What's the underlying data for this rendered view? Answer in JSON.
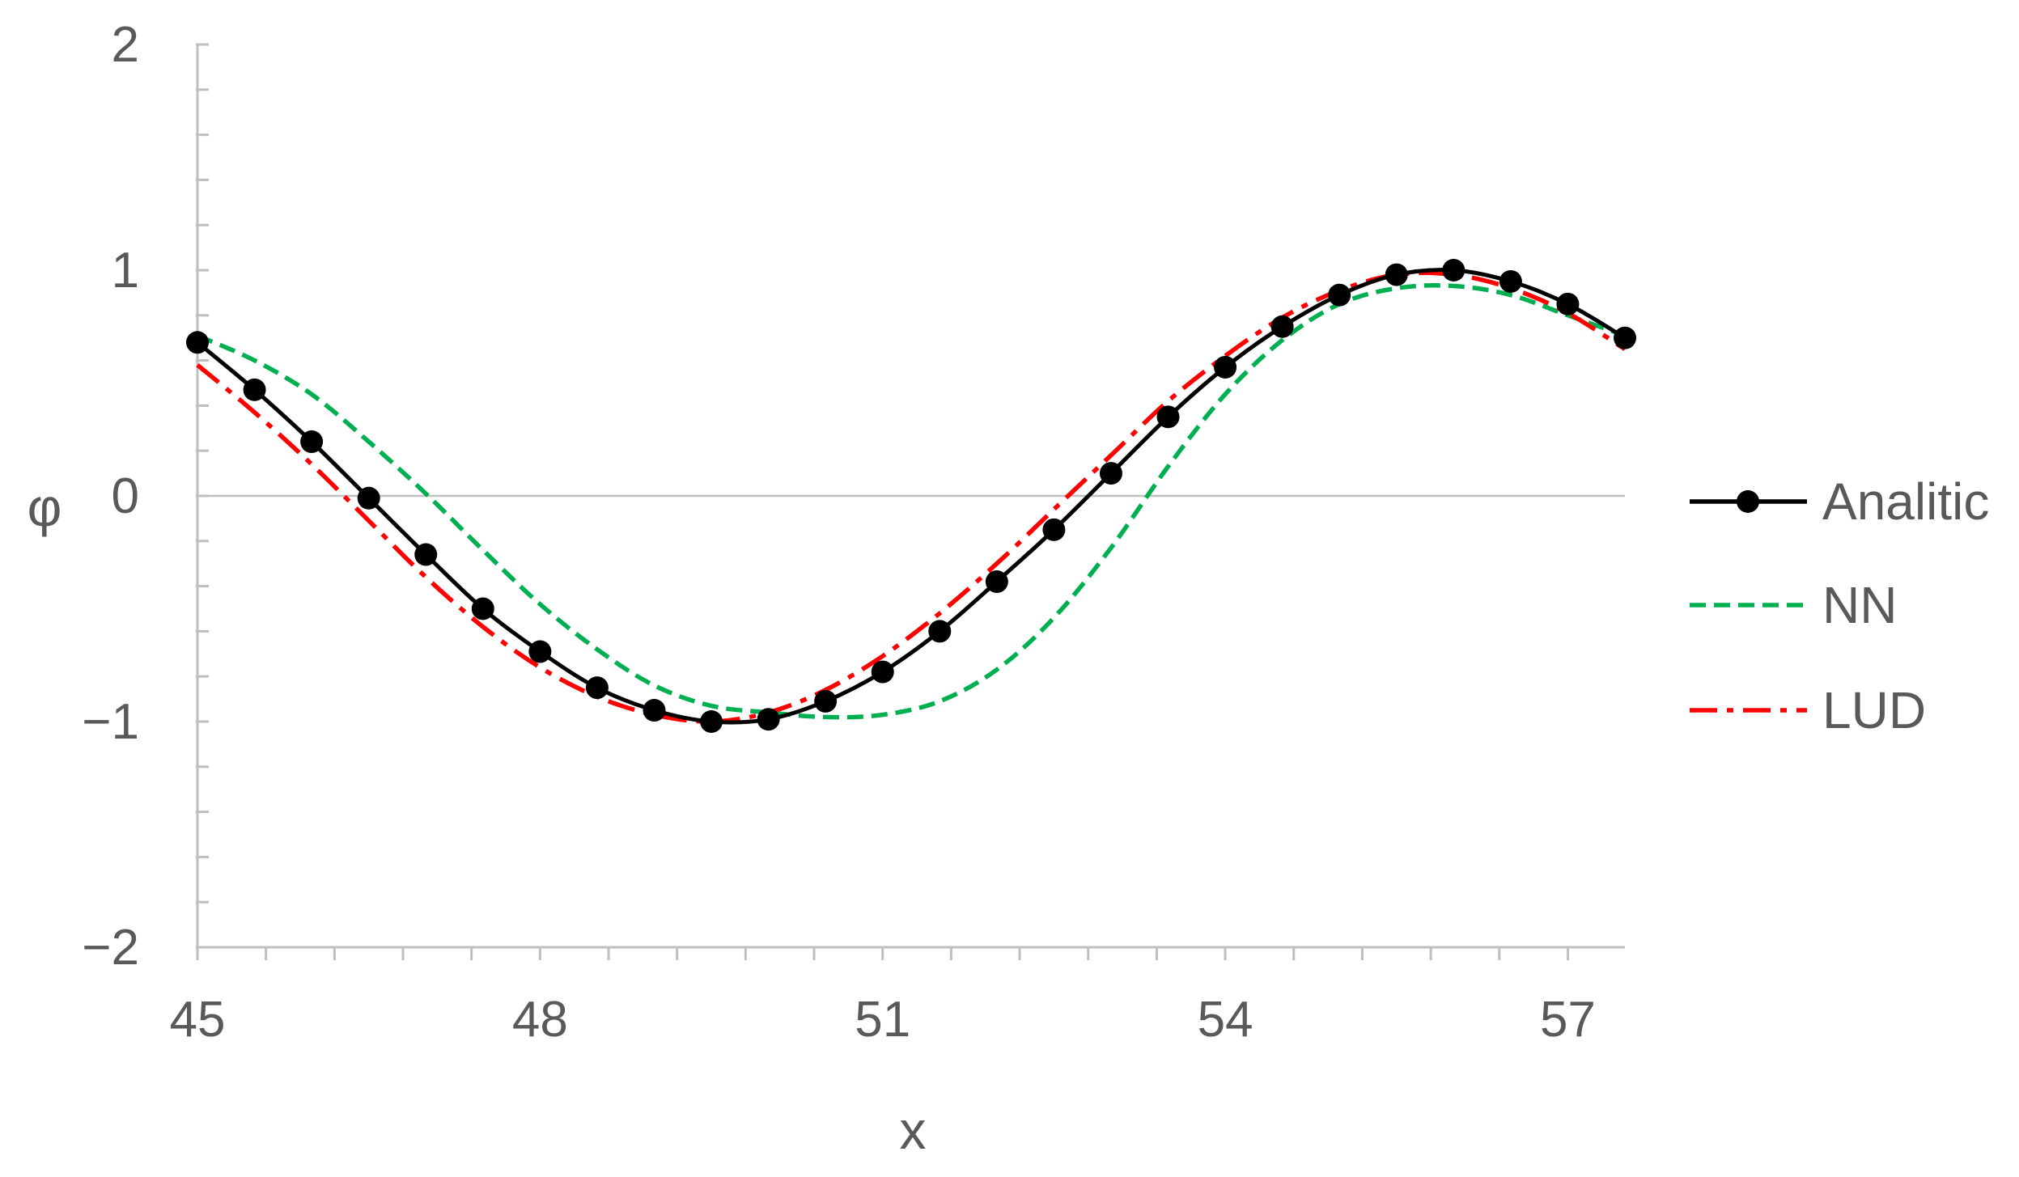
{
  "chart_data": {
    "type": "line",
    "xlabel": "x",
    "ylabel": "φ",
    "xlim": [
      45,
      57.5
    ],
    "ylim": [
      -2,
      2
    ],
    "x_ticks": [
      45,
      48,
      51,
      54,
      57
    ],
    "x_tick_labels": [
      "45",
      "48",
      "51",
      "54",
      "57"
    ],
    "x_minor_step": 0.6,
    "y_ticks": [
      -2,
      -1,
      0,
      1,
      2
    ],
    "y_tick_labels": [
      "−2",
      "−1",
      "0",
      "1",
      "2"
    ],
    "y_minor_step": 0.2,
    "zero_line": true,
    "grid": false,
    "legend_position": "right",
    "series": [
      {
        "name": "Analitic",
        "style": "solid-with-markers",
        "color": "#000000",
        "x": [
          45.0,
          45.5,
          46.0,
          46.5,
          47.0,
          47.5,
          48.0,
          48.5,
          49.0,
          49.5,
          50.0,
          50.5,
          51.0,
          51.5,
          52.0,
          52.5,
          53.0,
          53.5,
          54.0,
          54.5,
          55.0,
          55.5,
          56.0,
          56.5,
          57.0,
          57.5
        ],
        "y": [
          0.68,
          0.47,
          0.24,
          -0.01,
          -0.26,
          -0.5,
          -0.69,
          -0.85,
          -0.95,
          -1.0,
          -0.99,
          -0.91,
          -0.78,
          -0.6,
          -0.38,
          -0.15,
          0.1,
          0.35,
          0.57,
          0.75,
          0.89,
          0.98,
          1.0,
          0.95,
          0.85,
          0.7
        ]
      },
      {
        "name": "NN",
        "style": "dashed",
        "color": "#00B050",
        "x": [
          45.0,
          45.5,
          46.0,
          46.5,
          47.0,
          47.5,
          48.0,
          48.5,
          49.0,
          49.5,
          50.0,
          50.5,
          51.0,
          51.5,
          52.0,
          52.5,
          53.0,
          53.5,
          54.0,
          54.5,
          55.0,
          55.5,
          56.0,
          56.5,
          57.0,
          57.5
        ],
        "y": [
          0.71,
          0.6,
          0.45,
          0.24,
          0.01,
          -0.24,
          -0.48,
          -0.68,
          -0.84,
          -0.93,
          -0.96,
          -0.98,
          -0.97,
          -0.91,
          -0.77,
          -0.54,
          -0.23,
          0.13,
          0.45,
          0.69,
          0.85,
          0.92,
          0.93,
          0.89,
          0.8,
          0.71
        ]
      },
      {
        "name": "LUD",
        "style": "dash-dot",
        "color": "#FF0000",
        "x": [
          45.0,
          45.5,
          46.0,
          46.5,
          47.0,
          47.5,
          48.0,
          48.5,
          49.0,
          49.5,
          50.0,
          50.5,
          51.0,
          51.5,
          52.0,
          52.5,
          53.0,
          53.5,
          54.0,
          54.5,
          55.0,
          55.5,
          56.0,
          56.5,
          57.0,
          57.5
        ],
        "y": [
          0.58,
          0.37,
          0.14,
          -0.11,
          -0.36,
          -0.58,
          -0.76,
          -0.89,
          -0.97,
          -1.0,
          -0.96,
          -0.86,
          -0.71,
          -0.52,
          -0.3,
          -0.06,
          0.18,
          0.42,
          0.62,
          0.79,
          0.91,
          0.98,
          0.98,
          0.92,
          0.81,
          0.65
        ]
      }
    ]
  }
}
